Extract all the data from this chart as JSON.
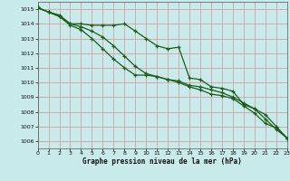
{
  "title": "Graphe pression niveau de la mer (hPa)",
  "bg_color": "#c8eaea",
  "grid_color": "#d4a0a0",
  "line_color": "#1a5c1a",
  "xlim": [
    0,
    23
  ],
  "ylim": [
    1005.5,
    1015.5
  ],
  "ytick_vals": [
    1006,
    1007,
    1008,
    1009,
    1010,
    1011,
    1012,
    1013,
    1014,
    1015
  ],
  "xtick_vals": [
    0,
    1,
    2,
    3,
    4,
    5,
    6,
    7,
    8,
    9,
    10,
    11,
    12,
    13,
    14,
    15,
    16,
    17,
    18,
    19,
    20,
    21,
    22,
    23
  ],
  "series1": [
    1015.1,
    1014.8,
    1014.6,
    1014.0,
    1014.0,
    1013.9,
    1013.9,
    1013.9,
    1014.0,
    1013.5,
    1013.0,
    1012.5,
    1012.3,
    1012.4,
    1010.3,
    1010.2,
    1009.7,
    1009.6,
    1009.4,
    1008.5,
    1008.2,
    1007.8,
    1007.0,
    1006.2
  ],
  "series2": [
    1015.1,
    1014.8,
    1014.5,
    1014.0,
    1013.8,
    1013.5,
    1013.1,
    1012.5,
    1011.8,
    1011.1,
    1010.6,
    1010.4,
    1010.2,
    1010.1,
    1009.8,
    1009.7,
    1009.5,
    1009.3,
    1009.0,
    1008.6,
    1008.2,
    1007.5,
    1006.8,
    1006.2
  ],
  "series3": [
    1015.1,
    1014.8,
    1014.5,
    1013.9,
    1013.6,
    1013.0,
    1012.3,
    1011.6,
    1011.0,
    1010.5,
    1010.5,
    1010.4,
    1010.2,
    1010.0,
    1009.7,
    1009.5,
    1009.2,
    1009.1,
    1008.9,
    1008.4,
    1007.9,
    1007.2,
    1006.9,
    1006.2
  ]
}
